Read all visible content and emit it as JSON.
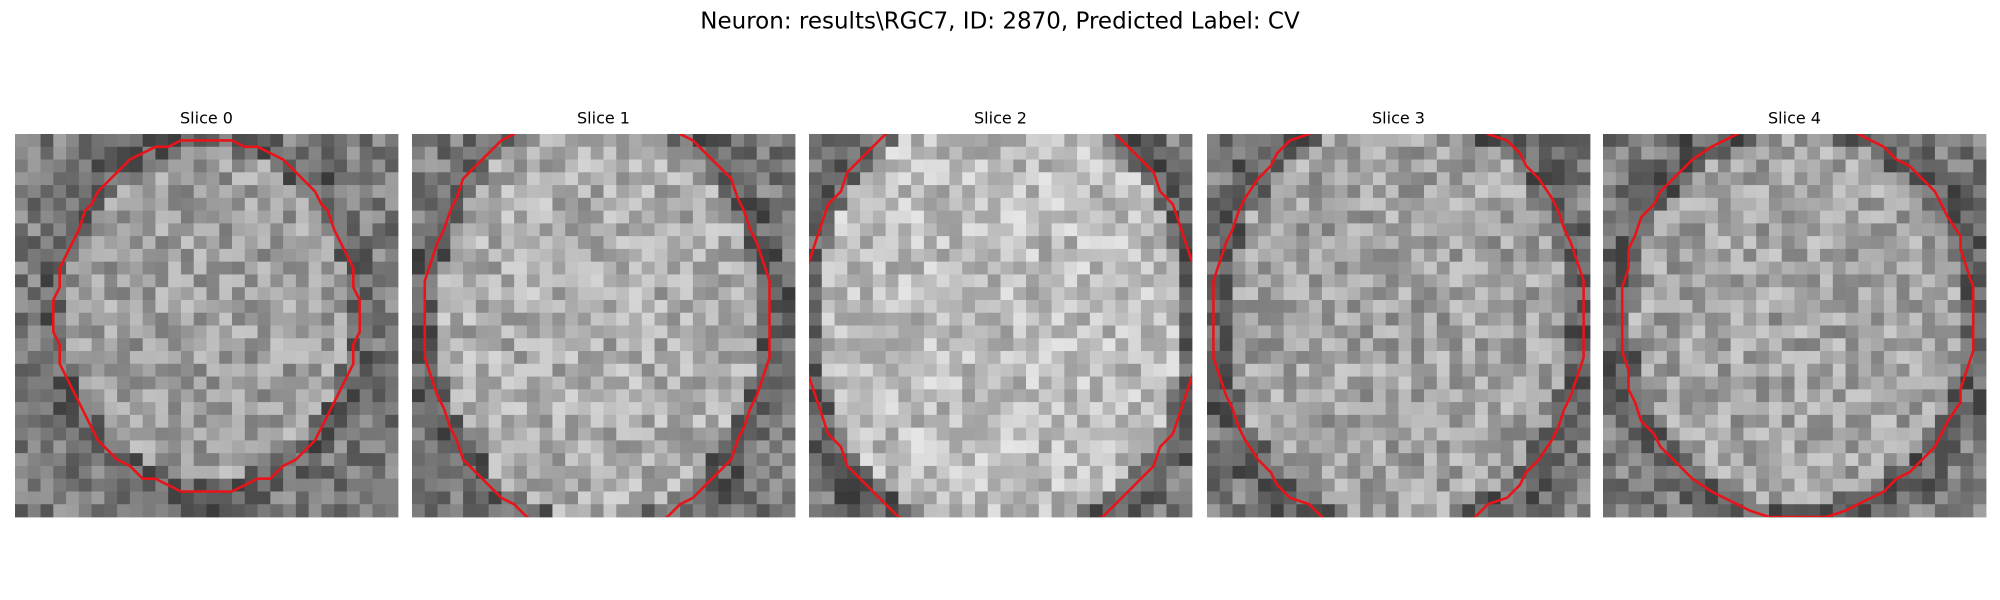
{
  "title": "Neuron: results\\RGC7, ID: 2870, Predicted Label: CV",
  "panels": [
    {
      "title": "Slice 0"
    },
    {
      "title": "Slice 1"
    },
    {
      "title": "Slice 2"
    },
    {
      "title": "Slice 3"
    },
    {
      "title": "Slice 4"
    }
  ]
}
